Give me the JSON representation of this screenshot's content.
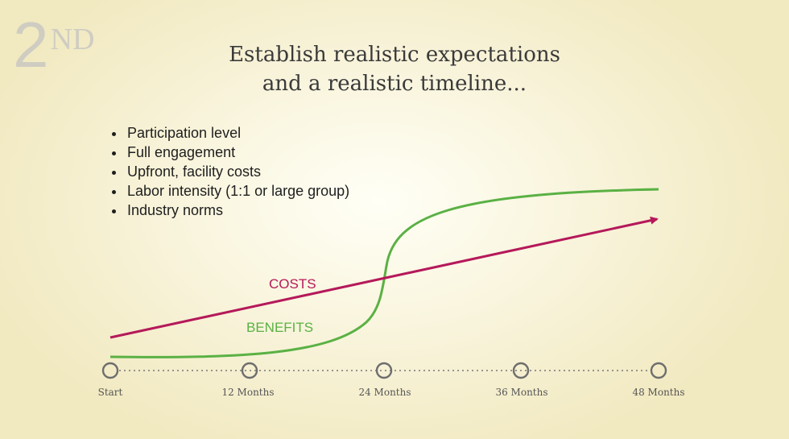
{
  "badge": {
    "number": "2",
    "suffix": "ND"
  },
  "title": {
    "line1": "Establish realistic expectations",
    "line2": "and a realistic timeline..."
  },
  "bullets": [
    "Participation level",
    "Full engagement",
    "Upfront, facility costs",
    "Labor intensity (1:1 or large group)",
    "Industry norms"
  ],
  "chart_data": {
    "type": "line",
    "x": [
      "Start",
      "12 Months",
      "24 Months",
      "36 Months",
      "48 Months"
    ],
    "series": [
      {
        "name": "COSTS",
        "trend": "linear increase (arrow)",
        "color": "#b5195a"
      },
      {
        "name": "BENEFITS",
        "trend": "S-curve: low until 24 Months, sharp rise, then plateau",
        "color": "#5ab144"
      }
    ],
    "colors": {
      "timeline_node": "#6e6e6e"
    }
  }
}
